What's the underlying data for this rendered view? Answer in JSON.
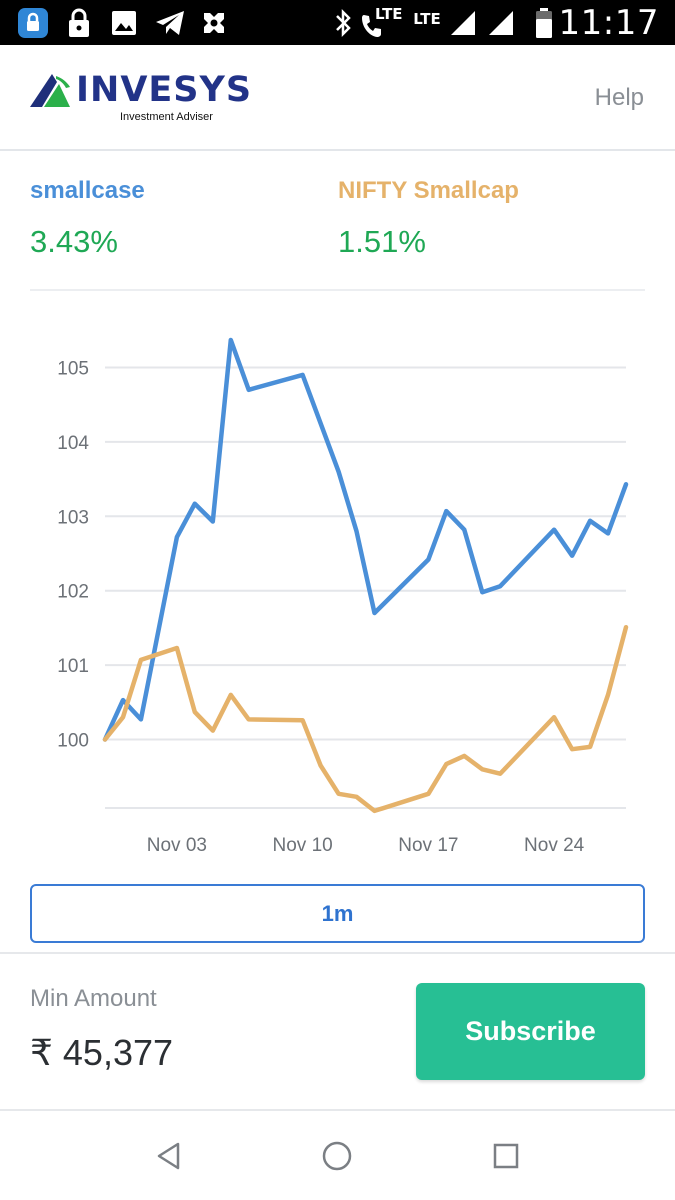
{
  "status_bar": {
    "time": "11:17",
    "lte_label_1": "LTE",
    "lte_label_2": "LTE",
    "icons": [
      "vpn-lock-icon",
      "lock-icon",
      "image-icon",
      "telegram-icon",
      "game-icon",
      "bluetooth-icon",
      "volte-call-icon",
      "signal-icon",
      "signal-icon",
      "battery-icon"
    ]
  },
  "header": {
    "brand": "INVESYS",
    "tagline": "Investment Adviser",
    "help_label": "Help"
  },
  "performance": {
    "smallcase": {
      "label": "smallcase",
      "value": "3.43%",
      "color": "#4a8fd8"
    },
    "benchmark": {
      "label": "NIFTY Smallcap",
      "value": "1.51%",
      "color": "#e5b26a"
    },
    "value_color": "#1fa855"
  },
  "chart_data": {
    "type": "line",
    "title": "",
    "xlabel": "",
    "ylabel": "",
    "x_ticks": [
      "Nov 03",
      "Nov 10",
      "Nov 17",
      "Nov 24"
    ],
    "y_ticks": [
      "100",
      "101",
      "102",
      "103",
      "104",
      "105"
    ],
    "ylim": [
      99.1,
      105.5
    ],
    "grid": true,
    "x": [
      "Oct 30",
      "Oct 31",
      "Nov 01",
      "Nov 02",
      "Nov 03",
      "Nov 04",
      "Nov 05",
      "Nov 06",
      "Nov 07",
      "Nov 08",
      "Nov 09",
      "Nov 10",
      "Nov 11",
      "Nov 12",
      "Nov 13",
      "Nov 14",
      "Nov 15",
      "Nov 16",
      "Nov 17",
      "Nov 18",
      "Nov 19",
      "Nov 20",
      "Nov 21",
      "Nov 22",
      "Nov 23",
      "Nov 24",
      "Nov 25",
      "Nov 26",
      "Nov 27",
      "Nov 28",
      "Nov 29"
    ],
    "series": [
      {
        "name": "smallcase",
        "color": "#4a8fd8",
        "points": [
          [
            "Oct 30",
            100.0
          ],
          [
            "Oct 31",
            100.53
          ],
          [
            "Nov 01",
            100.27
          ],
          [
            "Nov 03",
            102.72
          ],
          [
            "Nov 04",
            103.17
          ],
          [
            "Nov 05",
            102.93
          ],
          [
            "Nov 06",
            105.37
          ],
          [
            "Nov 07",
            104.7
          ],
          [
            "Nov 10",
            104.9
          ],
          [
            "Nov 12",
            103.6
          ],
          [
            "Nov 13",
            102.8
          ],
          [
            "Nov 14",
            101.7
          ],
          [
            "Nov 17",
            102.42
          ],
          [
            "Nov 18",
            103.07
          ],
          [
            "Nov 19",
            102.82
          ],
          [
            "Nov 20",
            101.98
          ],
          [
            "Nov 21",
            102.06
          ],
          [
            "Nov 24",
            102.82
          ],
          [
            "Nov 25",
            102.47
          ],
          [
            "Nov 26",
            102.94
          ],
          [
            "Nov 27",
            102.77
          ],
          [
            "Nov 28",
            103.43
          ]
        ]
      },
      {
        "name": "NIFTY Smallcap",
        "color": "#e5b26a",
        "points": [
          [
            "Oct 30",
            100.0
          ],
          [
            "Oct 31",
            100.3
          ],
          [
            "Nov 01",
            101.07
          ],
          [
            "Nov 03",
            101.23
          ],
          [
            "Nov 04",
            100.37
          ],
          [
            "Nov 05",
            100.12
          ],
          [
            "Nov 06",
            100.6
          ],
          [
            "Nov 07",
            100.27
          ],
          [
            "Nov 10",
            100.26
          ],
          [
            "Nov 11",
            99.65
          ],
          [
            "Nov 12",
            99.27
          ],
          [
            "Nov 13",
            99.23
          ],
          [
            "Nov 14",
            99.04
          ],
          [
            "Nov 17",
            99.27
          ],
          [
            "Nov 18",
            99.67
          ],
          [
            "Nov 19",
            99.78
          ],
          [
            "Nov 20",
            99.6
          ],
          [
            "Nov 21",
            99.54
          ],
          [
            "Nov 24",
            100.3
          ],
          [
            "Nov 25",
            99.87
          ],
          [
            "Nov 26",
            99.9
          ],
          [
            "Nov 27",
            100.6
          ],
          [
            "Nov 28",
            101.51
          ]
        ]
      }
    ]
  },
  "range_selector": {
    "label": "1m"
  },
  "footer": {
    "min_amount_label": "Min Amount",
    "min_amount_value": "₹ 45,377",
    "subscribe_label": "Subscribe"
  },
  "navigation": {
    "icons": [
      "back-icon",
      "home-icon",
      "recents-icon"
    ]
  }
}
